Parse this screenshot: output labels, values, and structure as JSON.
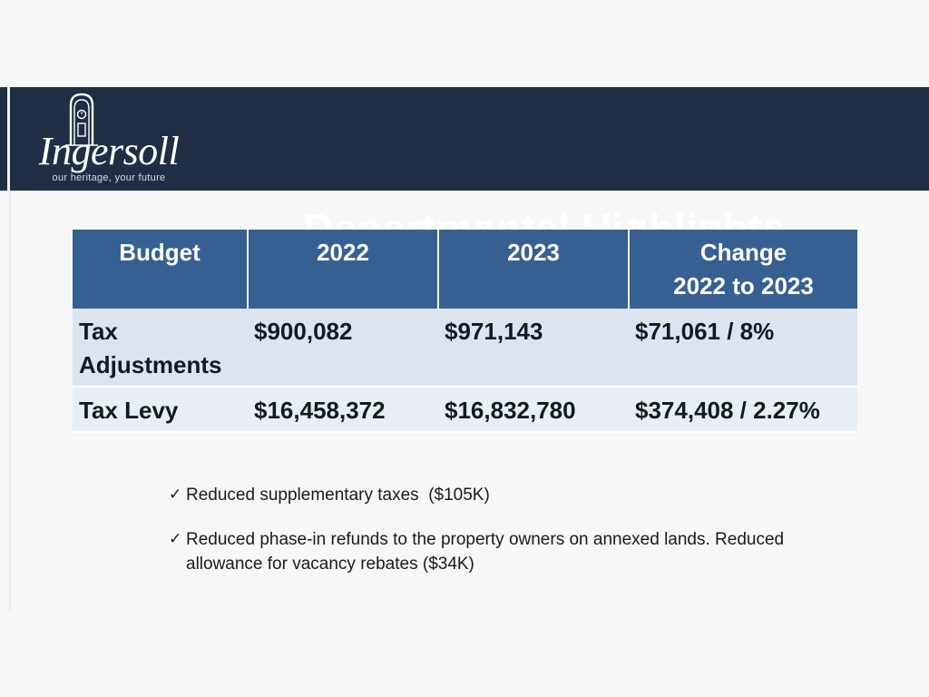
{
  "header": {
    "title": "Departmental Highlights",
    "logo": {
      "wordmark": "Ingersoll",
      "tagline": "our heritage, your future",
      "icon": "clock-tower-icon",
      "color": "#ffffff"
    },
    "background": "#1f2e44"
  },
  "table": {
    "header_color": "#376092",
    "columns": [
      "Budget",
      "2022",
      "2023",
      "Change\n2022 to 2023"
    ],
    "rows": [
      {
        "label": "Tax Adjustments",
        "y2022": "$900,082",
        "y2023": "$971,143",
        "change": "$71,061 / 8%"
      },
      {
        "label": "Tax Levy",
        "y2022": "$16,458,372",
        "y2023": "$16,832,780",
        "change": "$374,408 / 2.27%"
      }
    ]
  },
  "bullets": [
    {
      "icon": "checkmark-icon",
      "text": "Reduced supplementary taxes  ($105K)"
    },
    {
      "icon": "checkmark-icon",
      "text": "Reduced phase-in refunds to the property owners on annexed lands. Reduced allowance for vacancy rebates ($34K)"
    }
  ]
}
